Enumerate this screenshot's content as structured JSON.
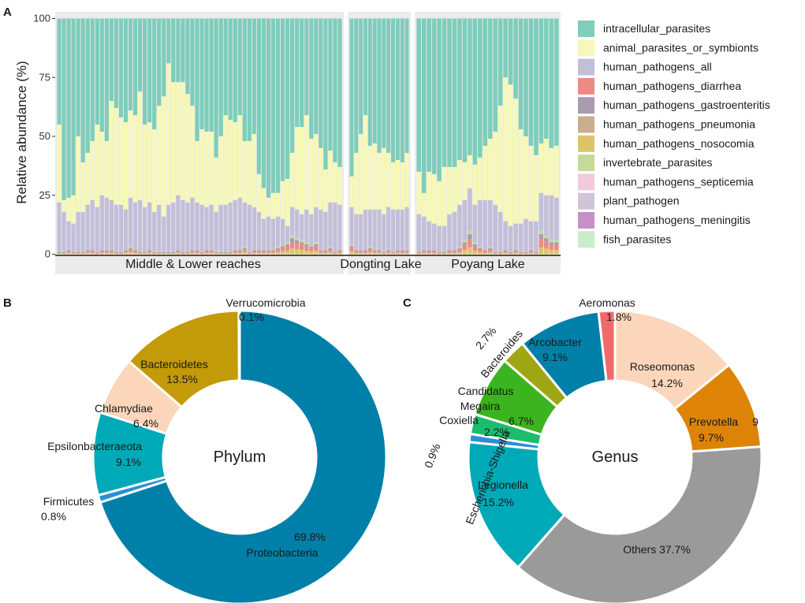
{
  "panels": {
    "a": "A",
    "b": "B",
    "c": "C"
  },
  "chart_data": [
    {
      "type": "bar",
      "stacked": true,
      "ylabel": "Relative abundance (%)",
      "ylim": [
        0,
        100
      ],
      "yticks": [
        "0",
        "25",
        "50",
        "75",
        "100"
      ],
      "facets": [
        {
          "name": "Middle & Lower reaches",
          "n_samples": 60
        },
        {
          "name": "Dongting Lake",
          "n_samples": 13
        },
        {
          "name": "Poyang Lake",
          "n_samples": 28
        }
      ],
      "legend": [
        {
          "name": "intracellular_parasites",
          "color": "#7fcdbb"
        },
        {
          "name": "animal_parasites_or_symbionts",
          "color": "#f6f8b8"
        },
        {
          "name": "human_pathogens_all",
          "color": "#c3bfd9"
        },
        {
          "name": "human_pathogens_diarrhea",
          "color": "#ee8a86"
        },
        {
          "name": "human_pathogens_gastroenteritis",
          "color": "#aa9bb0"
        },
        {
          "name": "human_pathogens_pneumonia",
          "color": "#c9ad8c"
        },
        {
          "name": "human_pathogens_nosocomia",
          "color": "#dcc46a"
        },
        {
          "name": "invertebrate_parasites",
          "color": "#c6da98"
        },
        {
          "name": "human_pathogens_septicemia",
          "color": "#f3c9dc"
        },
        {
          "name": "plant_pathogen",
          "color": "#d0c5d6"
        },
        {
          "name": "human_pathogens_meningitis",
          "color": "#c890c9"
        },
        {
          "name": "fish_parasites",
          "color": "#c9ecc9"
        }
      ],
      "series_values": {
        "human_pathogens_all": [
          21,
          17,
          12,
          12,
          17,
          17,
          19,
          21,
          19,
          23,
          22,
          21,
          20,
          20,
          17,
          21,
          20,
          22,
          19,
          20,
          17,
          20,
          15,
          20,
          21,
          23,
          22,
          21,
          22,
          20,
          20,
          18,
          19,
          17,
          20,
          20,
          21,
          21,
          22,
          19,
          20,
          18,
          16,
          13,
          14,
          13,
          13,
          11,
          7,
          12,
          12,
          11,
          14,
          13,
          15,
          17,
          16,
          19,
          21,
          19,
          16,
          15,
          15,
          17,
          16,
          17,
          17,
          16,
          18,
          18,
          17,
          17,
          18,
          16,
          14,
          12,
          11,
          11,
          11,
          15,
          16,
          18,
          17,
          18,
          16,
          20,
          21,
          20,
          20,
          17,
          12,
          11,
          11,
          12,
          14,
          12,
          13,
          16,
          17,
          19,
          18
        ],
        "minor_taxa": [
          1,
          1,
          2,
          1,
          1,
          1,
          2,
          2,
          1,
          2,
          2,
          2,
          1,
          1,
          2,
          3,
          2,
          1,
          1,
          2,
          1,
          1,
          1,
          1,
          1,
          2,
          1,
          1,
          2,
          2,
          1,
          2,
          2,
          1,
          1,
          1,
          1,
          2,
          2,
          3,
          1,
          2,
          2,
          2,
          2,
          2,
          3,
          4,
          5,
          8,
          7,
          6,
          5,
          4,
          5,
          2,
          2,
          3,
          1,
          2,
          4,
          2,
          2,
          2,
          3,
          2,
          2,
          1,
          2,
          1,
          2,
          2,
          2,
          1,
          2,
          2,
          2,
          1,
          1,
          2,
          2,
          3,
          6,
          10,
          5,
          3,
          2,
          3,
          1,
          1,
          2,
          1,
          2,
          1,
          1,
          2,
          1,
          10,
          8,
          6,
          6
        ],
        "animal_parasites_or_symbionts": [
          33,
          5,
          10,
          12,
          32,
          21,
          22,
          25,
          35,
          27,
          24,
          42,
          41,
          37,
          37,
          37,
          37,
          46,
          35,
          34,
          35,
          42,
          51,
          60,
          51,
          48,
          50,
          46,
          39,
          26,
          32,
          32,
          31,
          23,
          29,
          38,
          35,
          33,
          35,
          26,
          27,
          31,
          16,
          13,
          8,
          11,
          10,
          16,
          20,
          23,
          35,
          37,
          40,
          32,
          31,
          26,
          18,
          22,
          17,
          16,
          13,
          26,
          34,
          40,
          27,
          28,
          24,
          28,
          23,
          20,
          21,
          20,
          23,
          18,
          10,
          21,
          21,
          19,
          25,
          20,
          19,
          19,
          16,
          14,
          17,
          18,
          23,
          26,
          31,
          45,
          61,
          60,
          53,
          40,
          35,
          32,
          28,
          21,
          24,
          20,
          22
        ]
      },
      "x_order_note": "samples left to right; intracellular_parasites fills remainder to 100%"
    },
    {
      "type": "pie",
      "donut": true,
      "center_label": "Phylum",
      "slices": [
        {
          "name": "Proteobacteria",
          "value": 69.8,
          "label": "69.8%",
          "color": "#0080a8"
        },
        {
          "name": "Firmicutes",
          "value": 0.8,
          "label": "0.8%",
          "color": "#2b8fd6"
        },
        {
          "name": "Epsilonbacteraeota",
          "value": 9.1,
          "label": "9.1%",
          "color": "#00a9b7"
        },
        {
          "name": "Chlamydiae",
          "value": 6.4,
          "label": "6.4%",
          "color": "#fbd6bb"
        },
        {
          "name": "Bacteroidetes",
          "value": 13.5,
          "label": "13.5%",
          "color": "#c39a07"
        },
        {
          "name": "Verrucomicrobia",
          "value": 0.1,
          "label": "0.1%",
          "color": "#ef6b6b"
        }
      ]
    },
    {
      "type": "pie",
      "donut": true,
      "center_label": "Genus",
      "slices": [
        {
          "name": "Roseomonas",
          "value": 14.2,
          "label": "14.2%",
          "color": "#fbd6bb"
        },
        {
          "name": "Prevotella",
          "value": 9.7,
          "label": "9.7%",
          "extra": "9",
          "color": "#dd8407"
        },
        {
          "name": "Others",
          "value": 37.7,
          "label": "Others 37.7%",
          "color": "#9a9a9a"
        },
        {
          "name": "Legionella",
          "value": 15.2,
          "label": "15.2%",
          "color": "#00a9b7"
        },
        {
          "name": "Escherichia-Shigella",
          "value": 0.9,
          "label": "0.9%",
          "color": "#2b8fd6"
        },
        {
          "name": "Coxiella",
          "value": 2.2,
          "label": "2.2%",
          "color": "#1bbc6c"
        },
        {
          "name": "Candidatus Megaira",
          "label_line2": "Megaira",
          "label_line1": "Candidatus",
          "value": 6.7,
          "label": "6.7%",
          "color": "#3cb41f"
        },
        {
          "name": "Bacteroides",
          "value": 2.7,
          "label": "2.7%",
          "color": "#9ea614"
        },
        {
          "name": "Arcobacter",
          "value": 9.1,
          "label": "9.1%",
          "color": "#0080a8"
        },
        {
          "name": "Aeromonas",
          "value": 1.8,
          "label": "1.8%",
          "color": "#ef6b6b"
        }
      ]
    }
  ]
}
